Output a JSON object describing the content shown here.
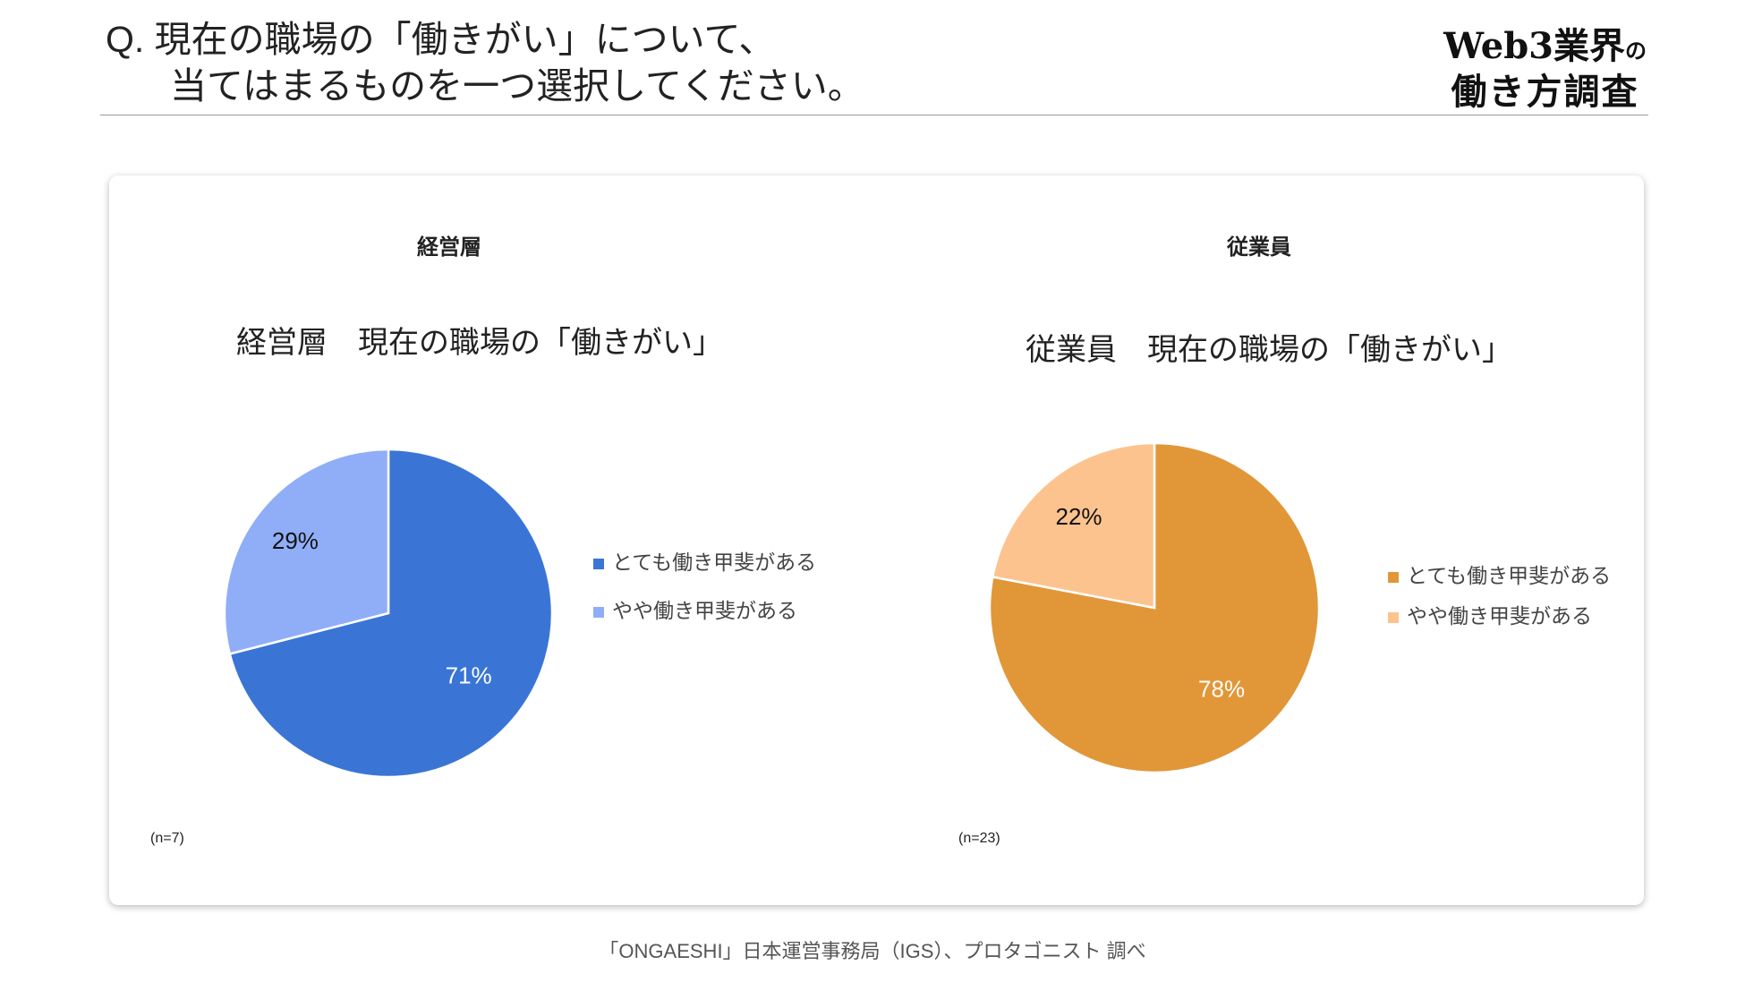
{
  "header": {
    "question_line1": "Q. 現在の職場の「働きがい」について、",
    "question_line2": "当てはまるものを一つ選択してください。",
    "brand_line1_main": "Web3業界",
    "brand_line1_small": "の",
    "brand_line2": "働き方調査"
  },
  "footer": {
    "source": "「ONGAESHI」日本運営事務局（IGS）、プロタゴニスト 調べ"
  },
  "chart_data": [
    {
      "type": "pie",
      "panel_heading": "経営層",
      "title": "経営層　現在の職場の「働きがい」",
      "note": "(n=7)",
      "legend_position": "right",
      "slices": [
        {
          "label": "とても働き甲斐がある",
          "value": 71,
          "display": "71%",
          "color": "#3A75D6"
        },
        {
          "label": "やや働き甲斐がある",
          "value": 29,
          "display": "29%",
          "color": "#90AEF7"
        }
      ]
    },
    {
      "type": "pie",
      "panel_heading": "従業員",
      "title": "従業員　現在の職場の「働きがい」",
      "note": "(n=23)",
      "legend_position": "right",
      "slices": [
        {
          "label": "とても働き甲斐がある",
          "value": 78,
          "display": "78%",
          "color": "#E19738"
        },
        {
          "label": "やや働き甲斐がある",
          "value": 22,
          "display": "22%",
          "color": "#FDC38E"
        }
      ]
    }
  ]
}
